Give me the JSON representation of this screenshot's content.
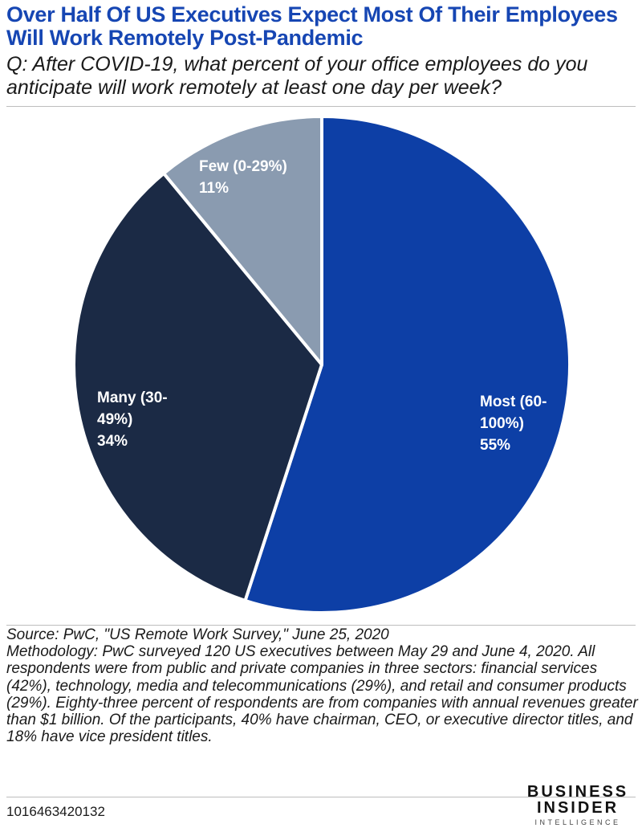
{
  "title": "Over Half Of US Executives Expect Most Of Their Employees Will Work Remotely Post-Pandemic",
  "subtitle": "Q: After COVID-19, what percent of your office employees do you anticipate will work remotely at least one day per week?",
  "chart_data": {
    "type": "pie",
    "slices": [
      {
        "label_lines": [
          "Most (60-",
          "100%)",
          "55%"
        ],
        "category": "Most (60-100%)",
        "value": 55,
        "color": "#0d3fa6",
        "text_color": "#ffffff"
      },
      {
        "label_lines": [
          "Many (30-",
          "49%)",
          "34%"
        ],
        "category": "Many (30-49%)",
        "value": 34,
        "color": "#1b2a45",
        "text_color": "#ffffff"
      },
      {
        "label_lines": [
          "Few (0-29%)",
          "11%"
        ],
        "category": "Few (0-29%)",
        "value": 11,
        "color": "#8a9bb0",
        "text_color": "#ffffff"
      }
    ],
    "start": "12 o'clock",
    "direction": "clockwise"
  },
  "source": "Source: PwC, \"US Remote Work Survey,\" June 25, 2020",
  "methodology": "Methodology: PwC surveyed 120 US executives between May 29 and June 4, 2020. All respondents were from public and private companies in three sectors: financial services (42%), technology, media and telecommunications (29%), and retail and consumer products (29%). Eighty-three percent of respondents are from companies with annual revenues greater than $1 billion. Of the participants, 40% have chairman, CEO, or executive director titles, and 18% have vice president titles.",
  "chart_id": "1016463420132",
  "logo": {
    "line1": "BUSINESS",
    "line2": "INSIDER",
    "line3": "INTELLIGENCE"
  }
}
